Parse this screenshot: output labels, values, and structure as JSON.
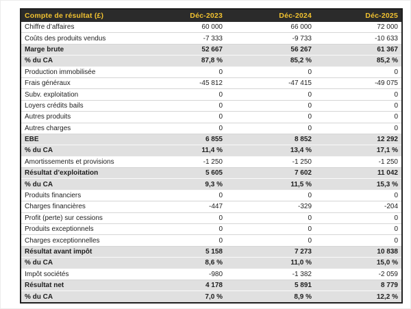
{
  "table": {
    "title": "Compte de résultat (£)",
    "columns": [
      "Déc-2023",
      "Déc-2024",
      "Déc-2025"
    ],
    "colors": {
      "header_bg": "#2b2b2b",
      "header_text": "#f2c230",
      "band_bg": "#e0e0e0",
      "outer_border": "#1f1f1f",
      "row_separator": "#d5d5d5",
      "body_text": "#1d1d1d",
      "page_bg": "#ffffff"
    },
    "rows": [
      {
        "label": "Chiffre d’affaires",
        "values": [
          "60 000",
          "66 000",
          "72 000"
        ],
        "emphasis": false
      },
      {
        "label": "Coûts des produits vendus",
        "values": [
          "-7 333",
          "-9 733",
          "-10 633"
        ],
        "emphasis": false
      },
      {
        "label": "Marge brute",
        "values": [
          "52 667",
          "56 267",
          "61 367"
        ],
        "emphasis": true
      },
      {
        "label": "% du CA",
        "values": [
          "87,8 %",
          "85,2 %",
          "85,2 %"
        ],
        "emphasis": true
      },
      {
        "label": "Production immobilisée",
        "values": [
          "0",
          "0",
          "0"
        ],
        "emphasis": false
      },
      {
        "label": "Frais généraux",
        "values": [
          "-45 812",
          "-47 415",
          "-49 075"
        ],
        "emphasis": false
      },
      {
        "label": "Subv. exploitation",
        "values": [
          "0",
          "0",
          "0"
        ],
        "emphasis": false
      },
      {
        "label": "Loyers crédits bails",
        "values": [
          "0",
          "0",
          "0"
        ],
        "emphasis": false
      },
      {
        "label": "Autres produits",
        "values": [
          "0",
          "0",
          "0"
        ],
        "emphasis": false
      },
      {
        "label": "Autres charges",
        "values": [
          "0",
          "0",
          "0"
        ],
        "emphasis": false
      },
      {
        "label": "EBE",
        "values": [
          "6 855",
          "8 852",
          "12 292"
        ],
        "emphasis": true
      },
      {
        "label": "% du CA",
        "values": [
          "11,4 %",
          "13,4 %",
          "17,1 %"
        ],
        "emphasis": true
      },
      {
        "label": "Amortissements et provisions",
        "values": [
          "-1 250",
          "-1 250",
          "-1 250"
        ],
        "emphasis": false
      },
      {
        "label": "Résultat d’exploitation",
        "values": [
          "5 605",
          "7 602",
          "11 042"
        ],
        "emphasis": true
      },
      {
        "label": "% du CA",
        "values": [
          "9,3 %",
          "11,5 %",
          "15,3 %"
        ],
        "emphasis": true
      },
      {
        "label": "Produits financiers",
        "values": [
          "0",
          "0",
          "0"
        ],
        "emphasis": false
      },
      {
        "label": "Charges financières",
        "values": [
          "-447",
          "-329",
          "-204"
        ],
        "emphasis": false
      },
      {
        "label": "Profit (perte) sur cessions",
        "values": [
          "0",
          "0",
          "0"
        ],
        "emphasis": false
      },
      {
        "label": "Produits exceptionnels",
        "values": [
          "0",
          "0",
          "0"
        ],
        "emphasis": false
      },
      {
        "label": "Charges exceptionnelles",
        "values": [
          "0",
          "0",
          "0"
        ],
        "emphasis": false
      },
      {
        "label": "Résultat avant impôt",
        "values": [
          "5 158",
          "7 273",
          "10 838"
        ],
        "emphasis": true
      },
      {
        "label": "% du CA",
        "values": [
          "8,6 %",
          "11,0 %",
          "15,0 %"
        ],
        "emphasis": true
      },
      {
        "label": "Impôt sociétés",
        "values": [
          "-980",
          "-1 382",
          "-2 059"
        ],
        "emphasis": false
      },
      {
        "label": "Résultat net",
        "values": [
          "4 178",
          "5 891",
          "8 779"
        ],
        "emphasis": true
      },
      {
        "label": "% du CA",
        "values": [
          "7,0 %",
          "8,9 %",
          "12,2 %"
        ],
        "emphasis": true
      }
    ]
  },
  "chart_data": {
    "type": "table",
    "title": "Compte de résultat (£)",
    "categories": [
      "Déc-2023",
      "Déc-2024",
      "Déc-2025"
    ],
    "series": [
      {
        "name": "Chiffre d’affaires",
        "values": [
          60000,
          66000,
          72000
        ]
      },
      {
        "name": "Coûts des produits vendus",
        "values": [
          -7333,
          -9733,
          -10633
        ]
      },
      {
        "name": "Marge brute",
        "values": [
          52667,
          56267,
          61367
        ]
      },
      {
        "name": "% du CA (marge brute)",
        "values": [
          87.8,
          85.2,
          85.2
        ]
      },
      {
        "name": "Production immobilisée",
        "values": [
          0,
          0,
          0
        ]
      },
      {
        "name": "Frais généraux",
        "values": [
          -45812,
          -47415,
          -49075
        ]
      },
      {
        "name": "Subv. exploitation",
        "values": [
          0,
          0,
          0
        ]
      },
      {
        "name": "Loyers crédits bails",
        "values": [
          0,
          0,
          0
        ]
      },
      {
        "name": "Autres produits",
        "values": [
          0,
          0,
          0
        ]
      },
      {
        "name": "Autres charges",
        "values": [
          0,
          0,
          0
        ]
      },
      {
        "name": "EBE",
        "values": [
          6855,
          8852,
          12292
        ]
      },
      {
        "name": "% du CA (EBE)",
        "values": [
          11.4,
          13.4,
          17.1
        ]
      },
      {
        "name": "Amortissements et provisions",
        "values": [
          -1250,
          -1250,
          -1250
        ]
      },
      {
        "name": "Résultat d’exploitation",
        "values": [
          5605,
          7602,
          11042
        ]
      },
      {
        "name": "% du CA (résultat d’exploitation)",
        "values": [
          9.3,
          11.5,
          15.3
        ]
      },
      {
        "name": "Produits financiers",
        "values": [
          0,
          0,
          0
        ]
      },
      {
        "name": "Charges financières",
        "values": [
          -447,
          -329,
          -204
        ]
      },
      {
        "name": "Profit (perte) sur cessions",
        "values": [
          0,
          0,
          0
        ]
      },
      {
        "name": "Produits exceptionnels",
        "values": [
          0,
          0,
          0
        ]
      },
      {
        "name": "Charges exceptionnelles",
        "values": [
          0,
          0,
          0
        ]
      },
      {
        "name": "Résultat avant impôt",
        "values": [
          5158,
          7273,
          10838
        ]
      },
      {
        "name": "% du CA (résultat avant impôt)",
        "values": [
          8.6,
          11.0,
          15.0
        ]
      },
      {
        "name": "Impôt sociétés",
        "values": [
          -980,
          -1382,
          -2059
        ]
      },
      {
        "name": "Résultat net",
        "values": [
          4178,
          5891,
          8779
        ]
      },
      {
        "name": "% du CA (résultat net)",
        "values": [
          7.0,
          8.9,
          12.2
        ]
      }
    ]
  }
}
